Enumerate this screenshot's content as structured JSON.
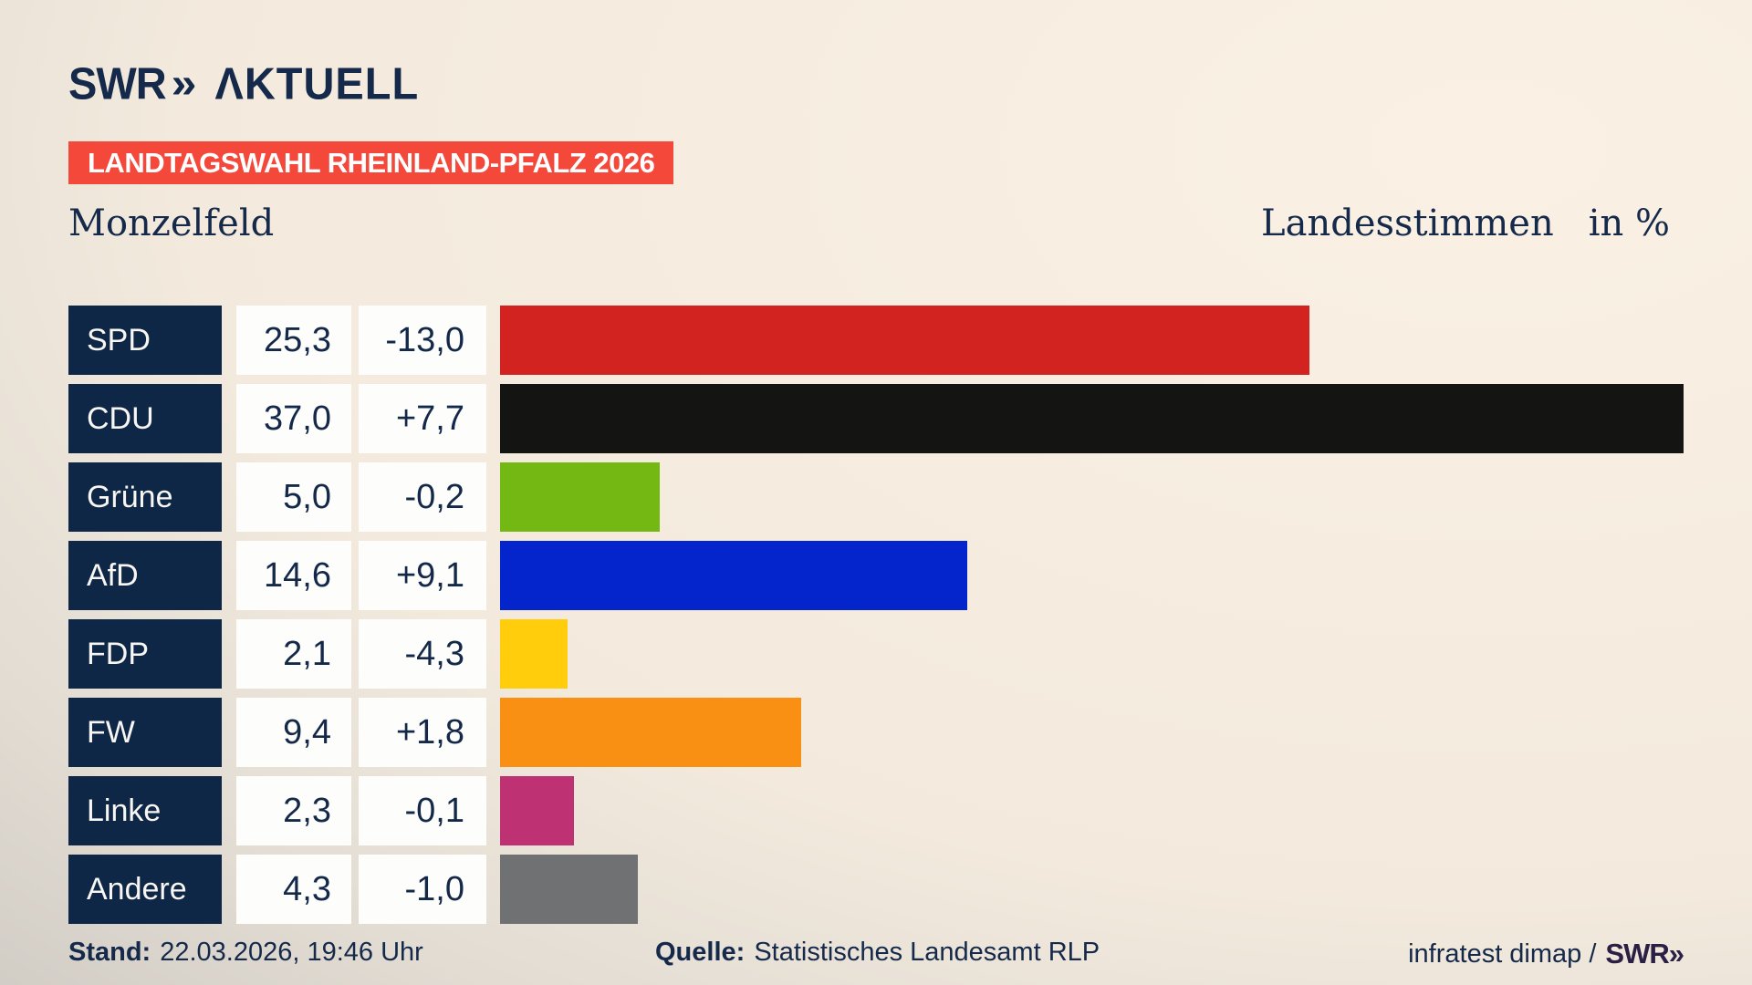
{
  "header": {
    "logo": {
      "swr": "SWR",
      "chevrons": "»",
      "aktuell": "ΛKTUELL"
    },
    "banner": "LANDTAGSWAHL RHEINLAND-PFALZ 2026",
    "region": "Monzelfeld",
    "right_title": "Landesstimmen",
    "unit": "in %"
  },
  "chart_data": {
    "type": "bar",
    "orientation": "horizontal",
    "title": "Landesstimmen in %",
    "categories": [
      "SPD",
      "CDU",
      "Grüne",
      "AfD",
      "FDP",
      "FW",
      "Linke",
      "Andere"
    ],
    "values": [
      25.3,
      37.0,
      5.0,
      14.6,
      2.1,
      9.4,
      2.3,
      4.3
    ],
    "changes": [
      -13.0,
      7.7,
      -0.2,
      9.1,
      -4.3,
      1.8,
      -0.1,
      -1.0
    ],
    "value_labels": [
      "25,3",
      "37,0",
      "5,0",
      "14,6",
      "2,1",
      "9,4",
      "2,3",
      "4,3"
    ],
    "change_labels": [
      "-13,0",
      "+7,7",
      "-0,2",
      "+9,1",
      "-4,3",
      "+1,8",
      "-0,1",
      "-1,0"
    ],
    "bar_colors": [
      "#d22321",
      "#141413",
      "#74b813",
      "#0425cb",
      "#ffcd0c",
      "#f98f13",
      "#be3173",
      "#6f7172"
    ],
    "xmax": 37.0,
    "grid": false,
    "legend": false
  },
  "footer": {
    "stand_label": "Stand:",
    "stand_value": "22.03.2026, 19:46 Uhr",
    "quelle_label": "Quelle:",
    "quelle_value": "Statistisches Landesamt RLP",
    "credit": "infratest dimap /",
    "credit_logo": "SWR»"
  },
  "colors": {
    "banner_background": "#f4483b",
    "navy": "#15294b",
    "party_box": "#0f2747",
    "cell_background": "#fdfdfb",
    "background_light": "#faf1e4",
    "background_dark": "#c3bfb9"
  }
}
